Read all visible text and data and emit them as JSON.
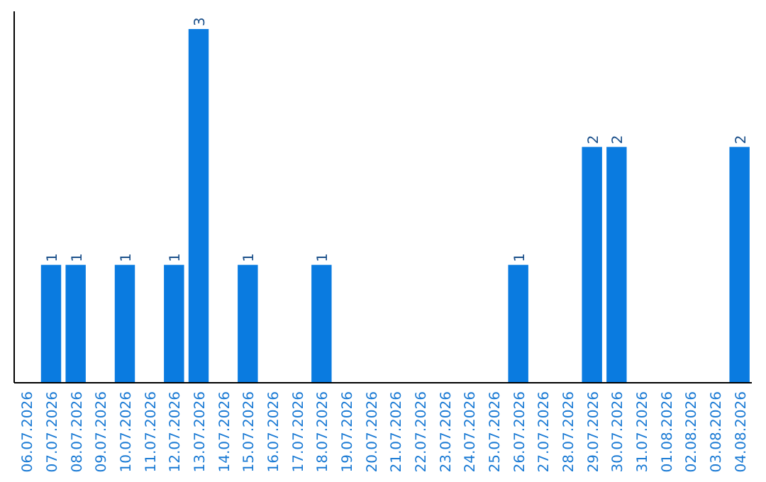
{
  "chart_data": {
    "type": "bar",
    "categories": [
      "06.07.2026",
      "07.07.2026",
      "08.07.2026",
      "09.07.2026",
      "10.07.2026",
      "11.07.2026",
      "12.07.2026",
      "13.07.2026",
      "14.07.2026",
      "15.07.2026",
      "16.07.2026",
      "17.07.2026",
      "18.07.2026",
      "19.07.2026",
      "20.07.2026",
      "21.07.2026",
      "22.07.2026",
      "23.07.2026",
      "24.07.2026",
      "25.07.2026",
      "26.07.2026",
      "27.07.2026",
      "28.07.2026",
      "29.07.2026",
      "30.07.2026",
      "31.07.2026",
      "01.08.2026",
      "02.08.2026",
      "03.08.2026",
      "04.08.2026"
    ],
    "values": [
      0,
      1,
      1,
      0,
      1,
      0,
      1,
      3,
      0,
      1,
      0,
      0,
      1,
      0,
      0,
      0,
      0,
      0,
      0,
      0,
      1,
      0,
      0,
      2,
      2,
      0,
      0,
      0,
      0,
      2
    ],
    "value_labels": [
      null,
      "1",
      "1",
      null,
      "1",
      null,
      "1",
      "3",
      null,
      "1",
      null,
      null,
      "1",
      null,
      null,
      null,
      null,
      null,
      null,
      null,
      "1",
      null,
      null,
      "2",
      "2",
      null,
      null,
      null,
      null,
      "2"
    ],
    "color": "#0a7be0",
    "grid": false
  }
}
